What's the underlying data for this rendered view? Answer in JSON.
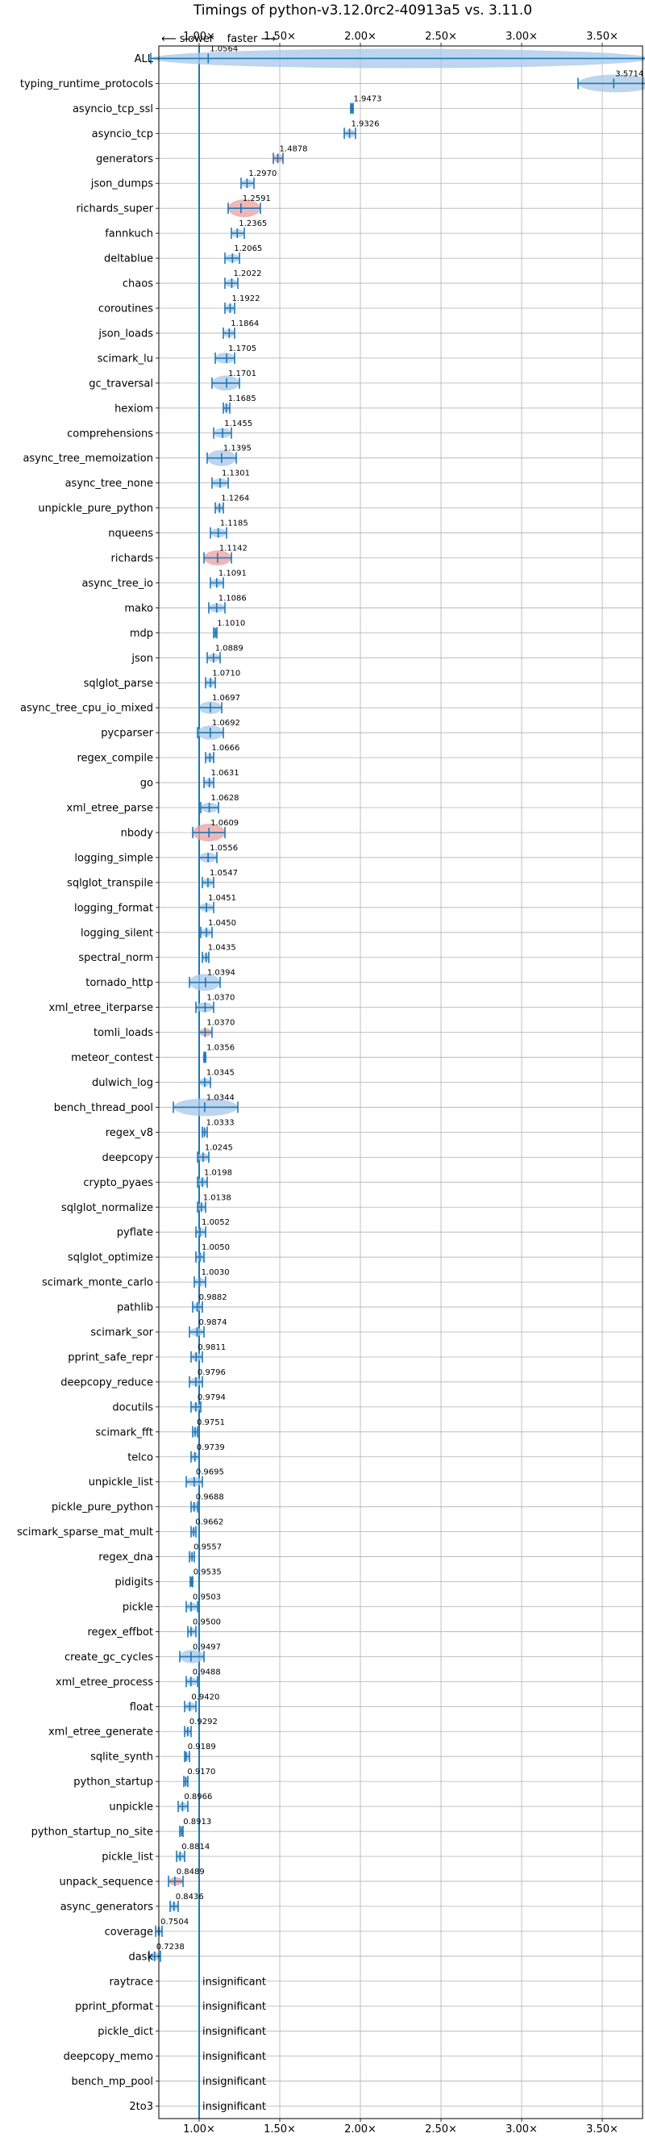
{
  "chart_data": {
    "type": "violin",
    "title": "Timings of python-v3.12.0rc2-40913a5 vs. 3.11.0",
    "direction_label": "⟵ slower    faster ⟶",
    "xlim": [
      0.75,
      3.75
    ],
    "reference_line": 1.0,
    "x_ticks": [
      1.0,
      1.5,
      2.0,
      2.5,
      3.0,
      3.5
    ],
    "x_tick_labels": [
      "1.00×",
      "1.50×",
      "2.00×",
      "2.50×",
      "3.00×",
      "3.50×"
    ],
    "grid": true,
    "colors": {
      "significant": "#1f77b4",
      "regression": "#d62728",
      "line": "#1f77b4"
    },
    "benchmarks": [
      {
        "name": "ALL",
        "value": 1.0564,
        "label": "1.0564",
        "err": [
          0.7,
          3.8
        ],
        "style": "wide"
      },
      {
        "name": "typing_runtime_protocols",
        "value": 3.5714,
        "label": "3.5714",
        "err": [
          3.35,
          3.82
        ],
        "style": "blue"
      },
      {
        "name": "asyncio_tcp_ssl",
        "value": 1.9473,
        "label": "1.9473",
        "err": [
          1.94,
          1.955
        ],
        "style": "blue"
      },
      {
        "name": "asyncio_tcp",
        "value": 1.9326,
        "label": "1.9326",
        "err": [
          1.9,
          1.97
        ],
        "style": "blue"
      },
      {
        "name": "generators",
        "value": 1.4878,
        "label": "1.4878",
        "err": [
          1.46,
          1.52
        ],
        "style": "red"
      },
      {
        "name": "json_dumps",
        "value": 1.297,
        "label": "1.2970",
        "err": [
          1.26,
          1.34
        ],
        "style": "blue"
      },
      {
        "name": "richards_super",
        "value": 1.2591,
        "label": "1.2591",
        "err": [
          1.18,
          1.38
        ],
        "style": "red"
      },
      {
        "name": "fannkuch",
        "value": 1.2365,
        "label": "1.2365",
        "err": [
          1.2,
          1.28
        ],
        "style": "blue"
      },
      {
        "name": "deltablue",
        "value": 1.2065,
        "label": "1.2065",
        "err": [
          1.16,
          1.25
        ],
        "style": "blue"
      },
      {
        "name": "chaos",
        "value": 1.2022,
        "label": "1.2022",
        "err": [
          1.16,
          1.24
        ],
        "style": "blue"
      },
      {
        "name": "coroutines",
        "value": 1.1922,
        "label": "1.1922",
        "err": [
          1.16,
          1.22
        ],
        "style": "blue"
      },
      {
        "name": "json_loads",
        "value": 1.1864,
        "label": "1.1864",
        "err": [
          1.15,
          1.22
        ],
        "style": "blue"
      },
      {
        "name": "scimark_lu",
        "value": 1.1705,
        "label": "1.1705",
        "err": [
          1.1,
          1.22
        ],
        "style": "blue"
      },
      {
        "name": "gc_traversal",
        "value": 1.1701,
        "label": "1.1701",
        "err": [
          1.08,
          1.25
        ],
        "style": "blue"
      },
      {
        "name": "hexiom",
        "value": 1.1685,
        "label": "1.1685",
        "err": [
          1.15,
          1.19
        ],
        "style": "blue"
      },
      {
        "name": "comprehensions",
        "value": 1.1455,
        "label": "1.1455",
        "err": [
          1.09,
          1.2
        ],
        "style": "blue"
      },
      {
        "name": "async_tree_memoization",
        "value": 1.1395,
        "label": "1.1395",
        "err": [
          1.05,
          1.23
        ],
        "style": "blue"
      },
      {
        "name": "async_tree_none",
        "value": 1.1301,
        "label": "1.1301",
        "err": [
          1.08,
          1.18
        ],
        "style": "blue"
      },
      {
        "name": "unpickle_pure_python",
        "value": 1.1264,
        "label": "1.1264",
        "err": [
          1.1,
          1.15
        ],
        "style": "blue"
      },
      {
        "name": "nqueens",
        "value": 1.1185,
        "label": "1.1185",
        "err": [
          1.07,
          1.17
        ],
        "style": "blue"
      },
      {
        "name": "richards",
        "value": 1.1142,
        "label": "1.1142",
        "err": [
          1.03,
          1.2
        ],
        "style": "red"
      },
      {
        "name": "async_tree_io",
        "value": 1.1091,
        "label": "1.1091",
        "err": [
          1.07,
          1.15
        ],
        "style": "blue"
      },
      {
        "name": "mako",
        "value": 1.1086,
        "label": "1.1086",
        "err": [
          1.06,
          1.16
        ],
        "style": "blue"
      },
      {
        "name": "mdp",
        "value": 1.101,
        "label": "1.1010",
        "err": [
          1.09,
          1.11
        ],
        "style": "blue"
      },
      {
        "name": "json",
        "value": 1.0889,
        "label": "1.0889",
        "err": [
          1.05,
          1.13
        ],
        "style": "blue"
      },
      {
        "name": "sqlglot_parse",
        "value": 1.071,
        "label": "1.0710",
        "err": [
          1.04,
          1.1
        ],
        "style": "blue"
      },
      {
        "name": "async_tree_cpu_io_mixed",
        "value": 1.0697,
        "label": "1.0697",
        "err": [
          1.0,
          1.14
        ],
        "style": "blue"
      },
      {
        "name": "pycparser",
        "value": 1.0692,
        "label": "1.0692",
        "err": [
          0.99,
          1.15
        ],
        "style": "blue"
      },
      {
        "name": "regex_compile",
        "value": 1.0666,
        "label": "1.0666",
        "err": [
          1.04,
          1.09
        ],
        "style": "blue"
      },
      {
        "name": "go",
        "value": 1.0631,
        "label": "1.0631",
        "err": [
          1.03,
          1.09
        ],
        "style": "blue"
      },
      {
        "name": "xml_etree_parse",
        "value": 1.0628,
        "label": "1.0628",
        "err": [
          1.01,
          1.12
        ],
        "style": "blue"
      },
      {
        "name": "nbody",
        "value": 1.0609,
        "label": "1.0609",
        "err": [
          0.96,
          1.16
        ],
        "style": "red"
      },
      {
        "name": "logging_simple",
        "value": 1.0556,
        "label": "1.0556",
        "err": [
          1.0,
          1.11
        ],
        "style": "blue"
      },
      {
        "name": "sqlglot_transpile",
        "value": 1.0547,
        "label": "1.0547",
        "err": [
          1.02,
          1.09
        ],
        "style": "blue"
      },
      {
        "name": "logging_format",
        "value": 1.0451,
        "label": "1.0451",
        "err": [
          1.0,
          1.09
        ],
        "style": "blue"
      },
      {
        "name": "logging_silent",
        "value": 1.045,
        "label": "1.0450",
        "err": [
          1.01,
          1.08
        ],
        "style": "blue"
      },
      {
        "name": "spectral_norm",
        "value": 1.0435,
        "label": "1.0435",
        "err": [
          1.02,
          1.06
        ],
        "style": "blue"
      },
      {
        "name": "tornado_http",
        "value": 1.0394,
        "label": "1.0394",
        "err": [
          0.94,
          1.13
        ],
        "style": "blue"
      },
      {
        "name": "xml_etree_iterparse",
        "value": 1.037,
        "label": "1.0370",
        "err": [
          0.98,
          1.09
        ],
        "style": "blue"
      },
      {
        "name": "tomli_loads",
        "value": 1.037,
        "label": "1.0370",
        "err": [
          1.0,
          1.08
        ],
        "style": "red"
      },
      {
        "name": "meteor_contest",
        "value": 1.0356,
        "label": "1.0356",
        "err": [
          1.03,
          1.04
        ],
        "style": "blue"
      },
      {
        "name": "dulwich_log",
        "value": 1.0345,
        "label": "1.0345",
        "err": [
          1.0,
          1.07
        ],
        "style": "blue"
      },
      {
        "name": "bench_thread_pool",
        "value": 1.0344,
        "label": "1.0344",
        "err": [
          0.84,
          1.24
        ],
        "style": "blue"
      },
      {
        "name": "regex_v8",
        "value": 1.0333,
        "label": "1.0333",
        "err": [
          1.02,
          1.05
        ],
        "style": "blue"
      },
      {
        "name": "deepcopy",
        "value": 1.0245,
        "label": "1.0245",
        "err": [
          0.99,
          1.06
        ],
        "style": "blue"
      },
      {
        "name": "crypto_pyaes",
        "value": 1.0198,
        "label": "1.0198",
        "err": [
          0.99,
          1.05
        ],
        "style": "blue"
      },
      {
        "name": "sqlglot_normalize",
        "value": 1.0138,
        "label": "1.0138",
        "err": [
          0.99,
          1.04
        ],
        "style": "blue"
      },
      {
        "name": "pyflate",
        "value": 1.0052,
        "label": "1.0052",
        "err": [
          0.98,
          1.04
        ],
        "style": "blue"
      },
      {
        "name": "sqlglot_optimize",
        "value": 1.005,
        "label": "1.0050",
        "err": [
          0.98,
          1.03
        ],
        "style": "blue"
      },
      {
        "name": "scimark_monte_carlo",
        "value": 1.003,
        "label": "1.0030",
        "err": [
          0.97,
          1.04
        ],
        "style": "blue"
      },
      {
        "name": "pathlib",
        "value": 0.9882,
        "label": "0.9882",
        "err": [
          0.96,
          1.02
        ],
        "style": "blue"
      },
      {
        "name": "scimark_sor",
        "value": 0.9874,
        "label": "0.9874",
        "err": [
          0.94,
          1.03
        ],
        "style": "blue"
      },
      {
        "name": "pprint_safe_repr",
        "value": 0.9811,
        "label": "0.9811",
        "err": [
          0.95,
          1.02
        ],
        "style": "blue"
      },
      {
        "name": "deepcopy_reduce",
        "value": 0.9796,
        "label": "0.9796",
        "err": [
          0.94,
          1.02
        ],
        "style": "blue"
      },
      {
        "name": "docutils",
        "value": 0.9794,
        "label": "0.9794",
        "err": [
          0.95,
          1.01
        ],
        "style": "blue"
      },
      {
        "name": "scimark_fft",
        "value": 0.9751,
        "label": "0.9751",
        "err": [
          0.96,
          0.99
        ],
        "style": "blue"
      },
      {
        "name": "telco",
        "value": 0.9739,
        "label": "0.9739",
        "err": [
          0.95,
          1.0
        ],
        "style": "blue"
      },
      {
        "name": "unpickle_list",
        "value": 0.9695,
        "label": "0.9695",
        "err": [
          0.92,
          1.02
        ],
        "style": "blue"
      },
      {
        "name": "pickle_pure_python",
        "value": 0.9688,
        "label": "0.9688",
        "err": [
          0.95,
          0.99
        ],
        "style": "blue"
      },
      {
        "name": "scimark_sparse_mat_mult",
        "value": 0.9662,
        "label": "0.9662",
        "err": [
          0.95,
          0.98
        ],
        "style": "blue"
      },
      {
        "name": "regex_dna",
        "value": 0.9557,
        "label": "0.9557",
        "err": [
          0.94,
          0.97
        ],
        "style": "blue"
      },
      {
        "name": "pidigits",
        "value": 0.9535,
        "label": "0.9535",
        "err": [
          0.945,
          0.96
        ],
        "style": "blue"
      },
      {
        "name": "pickle",
        "value": 0.9503,
        "label": "0.9503",
        "err": [
          0.92,
          0.99
        ],
        "style": "blue"
      },
      {
        "name": "regex_effbot",
        "value": 0.95,
        "label": "0.9500",
        "err": [
          0.93,
          0.98
        ],
        "style": "blue"
      },
      {
        "name": "create_gc_cycles",
        "value": 0.9497,
        "label": "0.9497",
        "err": [
          0.88,
          1.03
        ],
        "style": "blue"
      },
      {
        "name": "xml_etree_process",
        "value": 0.9488,
        "label": "0.9488",
        "err": [
          0.92,
          0.99
        ],
        "style": "blue"
      },
      {
        "name": "float",
        "value": 0.942,
        "label": "0.9420",
        "err": [
          0.91,
          0.98
        ],
        "style": "blue"
      },
      {
        "name": "xml_etree_generate",
        "value": 0.9292,
        "label": "0.9292",
        "err": [
          0.91,
          0.95
        ],
        "style": "blue"
      },
      {
        "name": "sqlite_synth",
        "value": 0.9189,
        "label": "0.9189",
        "err": [
          0.91,
          0.94
        ],
        "style": "blue"
      },
      {
        "name": "python_startup",
        "value": 0.917,
        "label": "0.9170",
        "err": [
          0.905,
          0.93
        ],
        "style": "blue"
      },
      {
        "name": "unpickle",
        "value": 0.8966,
        "label": "0.8966",
        "err": [
          0.87,
          0.93
        ],
        "style": "blue"
      },
      {
        "name": "python_startup_no_site",
        "value": 0.8913,
        "label": "0.8913",
        "err": [
          0.88,
          0.9
        ],
        "style": "blue"
      },
      {
        "name": "pickle_list",
        "value": 0.8814,
        "label": "0.8814",
        "err": [
          0.86,
          0.91
        ],
        "style": "blue"
      },
      {
        "name": "unpack_sequence",
        "value": 0.8489,
        "label": "0.8489",
        "err": [
          0.81,
          0.9
        ],
        "style": "red"
      },
      {
        "name": "async_generators",
        "value": 0.8436,
        "label": "0.8436",
        "err": [
          0.82,
          0.87
        ],
        "style": "blue"
      },
      {
        "name": "coverage",
        "value": 0.7504,
        "label": "0.7504",
        "err": [
          0.73,
          0.77
        ],
        "style": "blue"
      },
      {
        "name": "dask",
        "value": 0.7238,
        "label": "0.7238",
        "err": [
          0.69,
          0.76
        ],
        "style": "blue"
      },
      {
        "name": "raytrace",
        "value": null,
        "label": "insignificant",
        "style": "insignificant"
      },
      {
        "name": "pprint_pformat",
        "value": null,
        "label": "insignificant",
        "style": "insignificant"
      },
      {
        "name": "pickle_dict",
        "value": null,
        "label": "insignificant",
        "style": "insignificant"
      },
      {
        "name": "deepcopy_memo",
        "value": null,
        "label": "insignificant",
        "style": "insignificant"
      },
      {
        "name": "bench_mp_pool",
        "value": null,
        "label": "insignificant",
        "style": "insignificant"
      },
      {
        "name": "2to3",
        "value": null,
        "label": "insignificant",
        "style": "insignificant"
      }
    ]
  }
}
